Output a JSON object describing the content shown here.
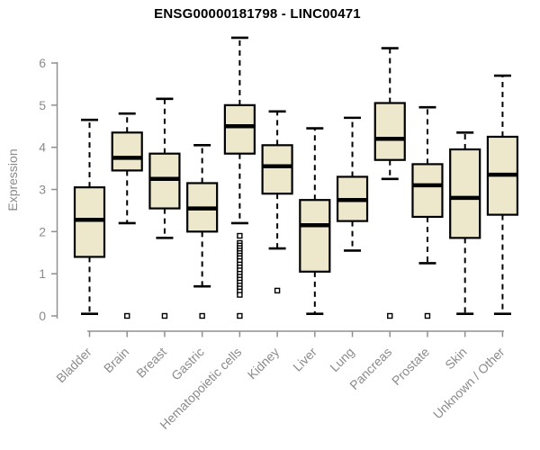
{
  "colors": {
    "background": "#ffffff",
    "box_fill": "#ede8cc",
    "box_stroke": "#000000",
    "median": "#000000",
    "axis_line": "#909090",
    "axis_text": "#8b8b8b",
    "title_text": "#000000"
  },
  "chart_data": {
    "type": "boxplot",
    "title": "ENSG00000181798 - LINC00471",
    "xlabel": "",
    "ylabel": "Expression",
    "ylim": [
      0,
      6
    ],
    "yticks": [
      0,
      1,
      2,
      3,
      4,
      5,
      6
    ],
    "grid": false,
    "legend": "none",
    "categories": [
      "Bladder",
      "Brain",
      "Breast",
      "Gastric",
      "Hematopoietic cells",
      "Kidney",
      "Liver",
      "Lung",
      "Pancreas",
      "Prostate",
      "Skin",
      "Unknown / Other"
    ],
    "series": [
      {
        "name": "Bladder",
        "whisker_low": 0.05,
        "q1": 1.4,
        "median": 2.28,
        "q3": 3.05,
        "whisker_high": 4.65,
        "outliers": []
      },
      {
        "name": "Brain",
        "whisker_low": 2.2,
        "q1": 3.45,
        "median": 3.75,
        "q3": 4.35,
        "whisker_high": 4.8,
        "outliers": [
          0
        ]
      },
      {
        "name": "Breast",
        "whisker_low": 1.85,
        "q1": 2.55,
        "median": 3.25,
        "q3": 3.85,
        "whisker_high": 5.15,
        "outliers": [
          0
        ]
      },
      {
        "name": "Gastric",
        "whisker_low": 0.7,
        "q1": 2.0,
        "median": 2.55,
        "q3": 3.15,
        "whisker_high": 4.05,
        "outliers": [
          0
        ]
      },
      {
        "name": "Hematopoietic cells",
        "whisker_low": 2.2,
        "q1": 3.85,
        "median": 4.5,
        "q3": 5.0,
        "whisker_high": 6.6,
        "outliers": [
          1.9,
          1.73,
          1.67,
          1.61,
          1.55,
          1.49,
          1.43,
          1.37,
          1.3,
          1.22,
          1.15,
          1.08,
          1.0,
          0.93,
          0.86,
          0.79,
          0.72,
          0.65,
          0.58,
          0.5,
          0
        ]
      },
      {
        "name": "Kidney",
        "whisker_low": 1.6,
        "q1": 2.9,
        "median": 3.55,
        "q3": 4.05,
        "whisker_high": 4.85,
        "outliers": [
          0.6
        ]
      },
      {
        "name": "Liver",
        "whisker_low": 0.05,
        "q1": 1.05,
        "median": 2.15,
        "q3": 2.75,
        "whisker_high": 4.45,
        "outliers": []
      },
      {
        "name": "Lung",
        "whisker_low": 1.55,
        "q1": 2.25,
        "median": 2.75,
        "q3": 3.3,
        "whisker_high": 4.7,
        "outliers": []
      },
      {
        "name": "Pancreas",
        "whisker_low": 3.25,
        "q1": 3.7,
        "median": 4.2,
        "q3": 5.05,
        "whisker_high": 6.35,
        "outliers": [
          0
        ]
      },
      {
        "name": "Prostate",
        "whisker_low": 1.25,
        "q1": 2.35,
        "median": 3.1,
        "q3": 3.6,
        "whisker_high": 4.95,
        "outliers": [
          0
        ]
      },
      {
        "name": "Skin",
        "whisker_low": 0.05,
        "q1": 1.85,
        "median": 2.8,
        "q3": 3.95,
        "whisker_high": 4.35,
        "outliers": []
      },
      {
        "name": "Unknown / Other",
        "whisker_low": 0.05,
        "q1": 2.4,
        "median": 3.35,
        "q3": 4.25,
        "whisker_high": 5.7,
        "outliers": []
      }
    ]
  }
}
